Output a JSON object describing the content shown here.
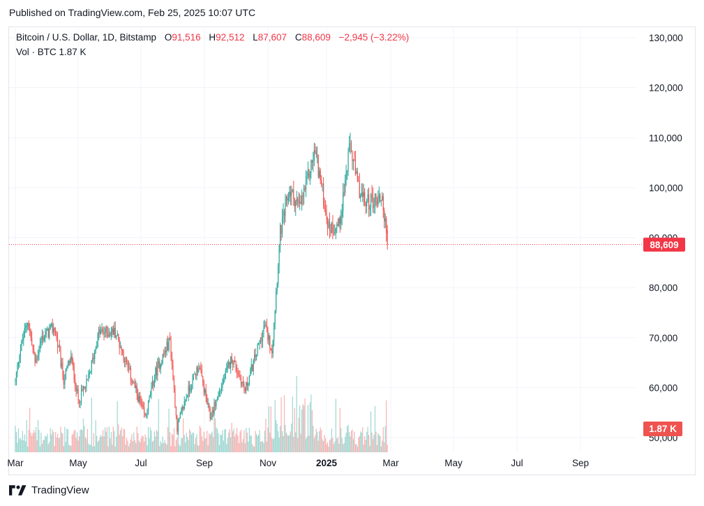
{
  "published": "Published on TradingView.com, Feb 25, 2025 10:07 UTC",
  "footer": {
    "brand": "TradingView",
    "logo_icon": "tradingview-logo-icon"
  },
  "legend": {
    "symbol": "Bitcoin / U.S. Dollar, 1D, Bitstamp",
    "open_label": "O",
    "open": "91,516",
    "high_label": "H",
    "high": "92,512",
    "low_label": "L",
    "low": "87,607",
    "close_label": "C",
    "close": "88,609",
    "change": "−2,945 (−3.22%)"
  },
  "vol_legend": {
    "label": "Vol · BTC",
    "value": "1.87 K"
  },
  "colors": {
    "up": "#26a69a",
    "down": "#ef5350",
    "price_badge": "#f23645",
    "grid": "#f0f3fa",
    "text": "#131722"
  },
  "chart_data": {
    "type": "candlestick",
    "title": "Bitcoin / U.S. Dollar, 1D, Bitstamp",
    "y_axis": {
      "ticks": [
        50000,
        60000,
        70000,
        80000,
        90000,
        100000,
        110000,
        120000,
        130000
      ],
      "tick_labels": [
        "50,000",
        "60,000",
        "70,000",
        "80,000",
        "90,000",
        "100,000",
        "110,000",
        "120,000",
        "130,000"
      ],
      "range": [
        49000,
        132000
      ]
    },
    "x_axis": {
      "tick_labels": [
        "Mar",
        "May",
        "Jul",
        "Sep",
        "Nov",
        "2025",
        "Mar",
        "May",
        "Jul",
        "Sep"
      ]
    },
    "current_price": 88609,
    "current_price_label": "88,609",
    "current_volume_label": "1.87 K",
    "price_path": [
      [
        "2024-03-01",
        61200
      ],
      [
        "2024-03-05",
        67000
      ],
      [
        "2024-03-13",
        73500
      ],
      [
        "2024-03-20",
        65000
      ],
      [
        "2024-03-27",
        70000
      ],
      [
        "2024-04-08",
        72000
      ],
      [
        "2024-04-17",
        61500
      ],
      [
        "2024-04-24",
        66000
      ],
      [
        "2024-05-01",
        57500
      ],
      [
        "2024-05-10",
        61000
      ],
      [
        "2024-05-21",
        71000
      ],
      [
        "2024-06-06",
        71200
      ],
      [
        "2024-06-24",
        60500
      ],
      [
        "2024-07-05",
        54000
      ],
      [
        "2024-07-15",
        63000
      ],
      [
        "2024-07-29",
        69500
      ],
      [
        "2024-08-05",
        52000
      ],
      [
        "2024-08-15",
        59000
      ],
      [
        "2024-08-26",
        64500
      ],
      [
        "2024-09-06",
        54000
      ],
      [
        "2024-09-27",
        66000
      ],
      [
        "2024-10-10",
        59500
      ],
      [
        "2024-10-29",
        72500
      ],
      [
        "2024-11-05",
        67500
      ],
      [
        "2024-11-13",
        91000
      ],
      [
        "2024-11-22",
        99500
      ],
      [
        "2024-12-02",
        96000
      ],
      [
        "2024-12-17",
        107500
      ],
      [
        "2024-12-30",
        92000
      ],
      [
        "2025-01-09",
        92500
      ],
      [
        "2025-01-20",
        108500
      ],
      [
        "2025-01-27",
        100500
      ],
      [
        "2025-02-03",
        97000
      ],
      [
        "2025-02-20",
        98000
      ],
      [
        "2025-02-25",
        88609
      ]
    ]
  }
}
